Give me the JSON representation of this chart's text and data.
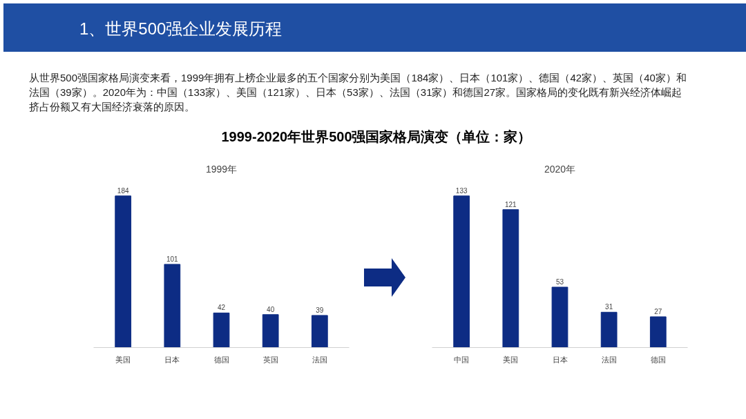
{
  "chart_data": [
    {
      "type": "other",
      "title": "1999-2020年世界500强国家格局演变（单位：家）",
      "annotations": [
        "1、世界500强企业发展历程",
        "从世界500强国家格局演变来看，1999年拥有上榜企业最多的五个国家分别为美国（184家）、日本（101家）、德国（42家）、英国（40家）和法国（39家）。2020年为：中国（133家）、美国（121家）、日本（53家）、法国（31家）和德国27家。国家格局的变化既有新兴经济体崛起挤占份额又有大国经济衰落的原因。"
      ]
    },
    {
      "type": "bar",
      "title": "1999年",
      "categories": [
        "美国",
        "日本",
        "德国",
        "英国",
        "法国"
      ],
      "values": [
        184,
        101,
        42,
        40,
        39
      ],
      "color": "#0d2c84",
      "data_labels": true
    },
    {
      "type": "bar",
      "title": "2020年",
      "categories": [
        "中国",
        "美国",
        "日本",
        "法国",
        "德国"
      ],
      "values": [
        133,
        121,
        53,
        31,
        27
      ],
      "color": "#0d2c84",
      "data_labels": true
    }
  ]
}
